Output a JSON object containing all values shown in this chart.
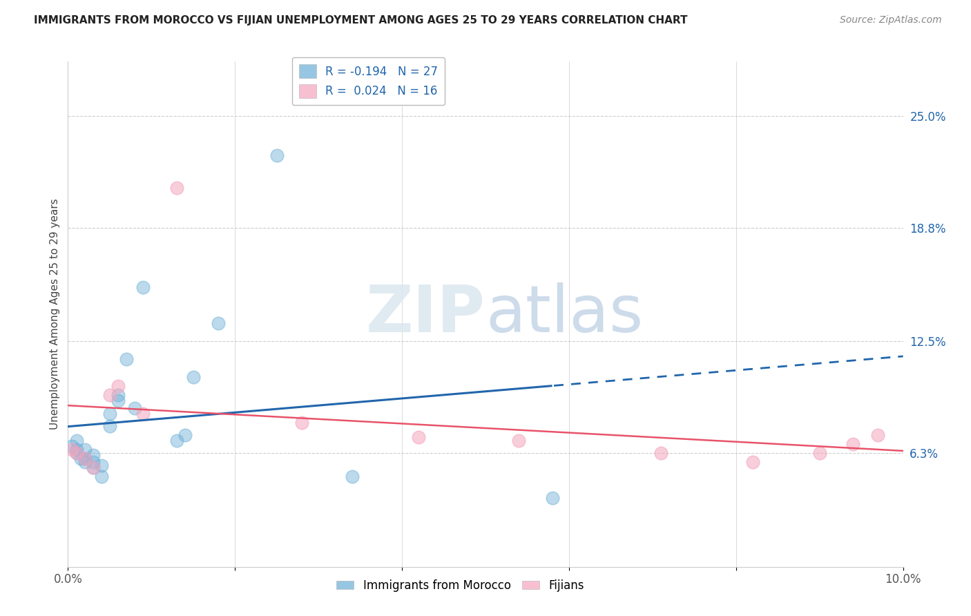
{
  "title": "IMMIGRANTS FROM MOROCCO VS FIJIAN UNEMPLOYMENT AMONG AGES 25 TO 29 YEARS CORRELATION CHART",
  "source": "Source: ZipAtlas.com",
  "ylabel": "Unemployment Among Ages 25 to 29 years",
  "xlim": [
    0.0,
    0.1
  ],
  "ylim": [
    0.0,
    0.28
  ],
  "xticks": [
    0.0,
    0.02,
    0.04,
    0.06,
    0.08,
    0.1
  ],
  "xticklabels": [
    "0.0%",
    "",
    "",
    "",
    "",
    "10.0%"
  ],
  "ytick_right_labels": [
    "25.0%",
    "18.8%",
    "12.5%",
    "6.3%"
  ],
  "ytick_right_values": [
    0.25,
    0.188,
    0.125,
    0.063
  ],
  "morocco_color": "#6baed6",
  "fijian_color": "#f4a6be",
  "morocco_line_color": "#2166ac",
  "fijian_line_color": "#e8536a",
  "background_color": "#ffffff",
  "watermark_zip": "ZIP",
  "watermark_atlas": "atlas",
  "morocco_x": [
    0.0005,
    0.001,
    0.001,
    0.001,
    0.0015,
    0.002,
    0.002,
    0.002,
    0.003,
    0.003,
    0.003,
    0.004,
    0.004,
    0.005,
    0.005,
    0.006,
    0.006,
    0.007,
    0.008,
    0.009,
    0.013,
    0.014,
    0.015,
    0.018,
    0.025,
    0.034,
    0.058
  ],
  "morocco_y": [
    0.067,
    0.063,
    0.065,
    0.07,
    0.06,
    0.058,
    0.06,
    0.065,
    0.055,
    0.058,
    0.062,
    0.05,
    0.056,
    0.078,
    0.085,
    0.092,
    0.095,
    0.115,
    0.088,
    0.155,
    0.07,
    0.073,
    0.105,
    0.135,
    0.228,
    0.05,
    0.038
  ],
  "fijian_x": [
    0.0005,
    0.001,
    0.002,
    0.003,
    0.005,
    0.006,
    0.009,
    0.013,
    0.028,
    0.042,
    0.054,
    0.071,
    0.082,
    0.09,
    0.094,
    0.097
  ],
  "fijian_y": [
    0.065,
    0.063,
    0.06,
    0.055,
    0.095,
    0.1,
    0.085,
    0.21,
    0.08,
    0.072,
    0.07,
    0.063,
    0.058,
    0.063,
    0.068,
    0.073
  ],
  "legend_patch1_label": "R = -0.194",
  "legend_N1": "N = 27",
  "legend_patch2_label": "R =  0.024",
  "legend_N2": "N = 16",
  "bottom_legend1": "Immigrants from Morocco",
  "bottom_legend2": "Fijians"
}
